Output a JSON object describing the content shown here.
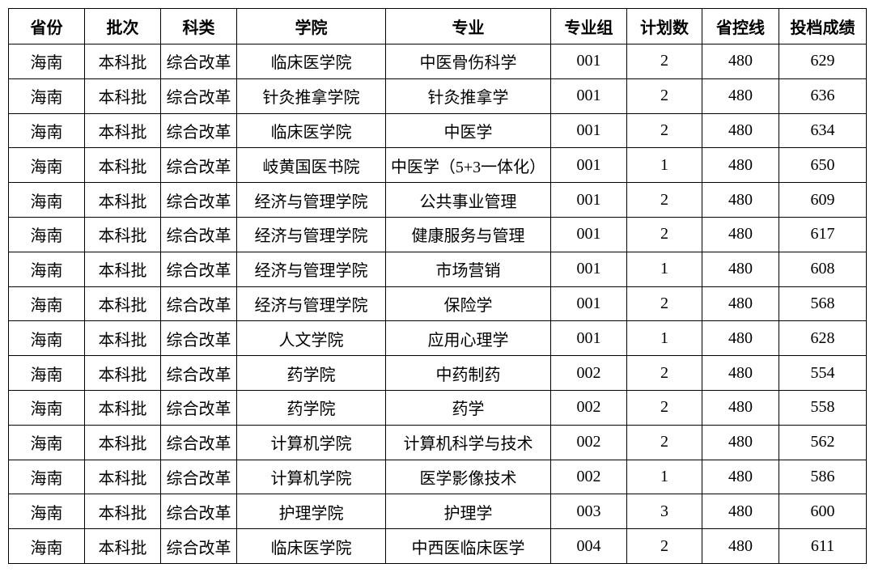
{
  "table": {
    "headers": [
      "省份",
      "批次",
      "科类",
      "学院",
      "专业",
      "专业组",
      "计划数",
      "省控线",
      "投档成绩"
    ],
    "rows": [
      [
        "海南",
        "本科批",
        "综合改革",
        "临床医学院",
        "中医骨伤科学",
        "001",
        "2",
        "480",
        "629"
      ],
      [
        "海南",
        "本科批",
        "综合改革",
        "针灸推拿学院",
        "针灸推拿学",
        "001",
        "2",
        "480",
        "636"
      ],
      [
        "海南",
        "本科批",
        "综合改革",
        "临床医学院",
        "中医学",
        "001",
        "2",
        "480",
        "634"
      ],
      [
        "海南",
        "本科批",
        "综合改革",
        "岐黄国医书院",
        "中医学（5+3一体化）",
        "001",
        "1",
        "480",
        "650"
      ],
      [
        "海南",
        "本科批",
        "综合改革",
        "经济与管理学院",
        "公共事业管理",
        "001",
        "2",
        "480",
        "609"
      ],
      [
        "海南",
        "本科批",
        "综合改革",
        "经济与管理学院",
        "健康服务与管理",
        "001",
        "2",
        "480",
        "617"
      ],
      [
        "海南",
        "本科批",
        "综合改革",
        "经济与管理学院",
        "市场营销",
        "001",
        "1",
        "480",
        "608"
      ],
      [
        "海南",
        "本科批",
        "综合改革",
        "经济与管理学院",
        "保险学",
        "001",
        "2",
        "480",
        "568"
      ],
      [
        "海南",
        "本科批",
        "综合改革",
        "人文学院",
        "应用心理学",
        "001",
        "1",
        "480",
        "628"
      ],
      [
        "海南",
        "本科批",
        "综合改革",
        "药学院",
        "中药制药",
        "002",
        "2",
        "480",
        "554"
      ],
      [
        "海南",
        "本科批",
        "综合改革",
        "药学院",
        "药学",
        "002",
        "2",
        "480",
        "558"
      ],
      [
        "海南",
        "本科批",
        "综合改革",
        "计算机学院",
        "计算机科学与技术",
        "002",
        "2",
        "480",
        "562"
      ],
      [
        "海南",
        "本科批",
        "综合改革",
        "计算机学院",
        "医学影像技术",
        "002",
        "1",
        "480",
        "586"
      ],
      [
        "海南",
        "本科批",
        "综合改革",
        "护理学院",
        "护理学",
        "003",
        "3",
        "480",
        "600"
      ],
      [
        "海南",
        "本科批",
        "综合改革",
        "临床医学院",
        "中西医临床医学",
        "004",
        "2",
        "480",
        "611"
      ]
    ]
  }
}
